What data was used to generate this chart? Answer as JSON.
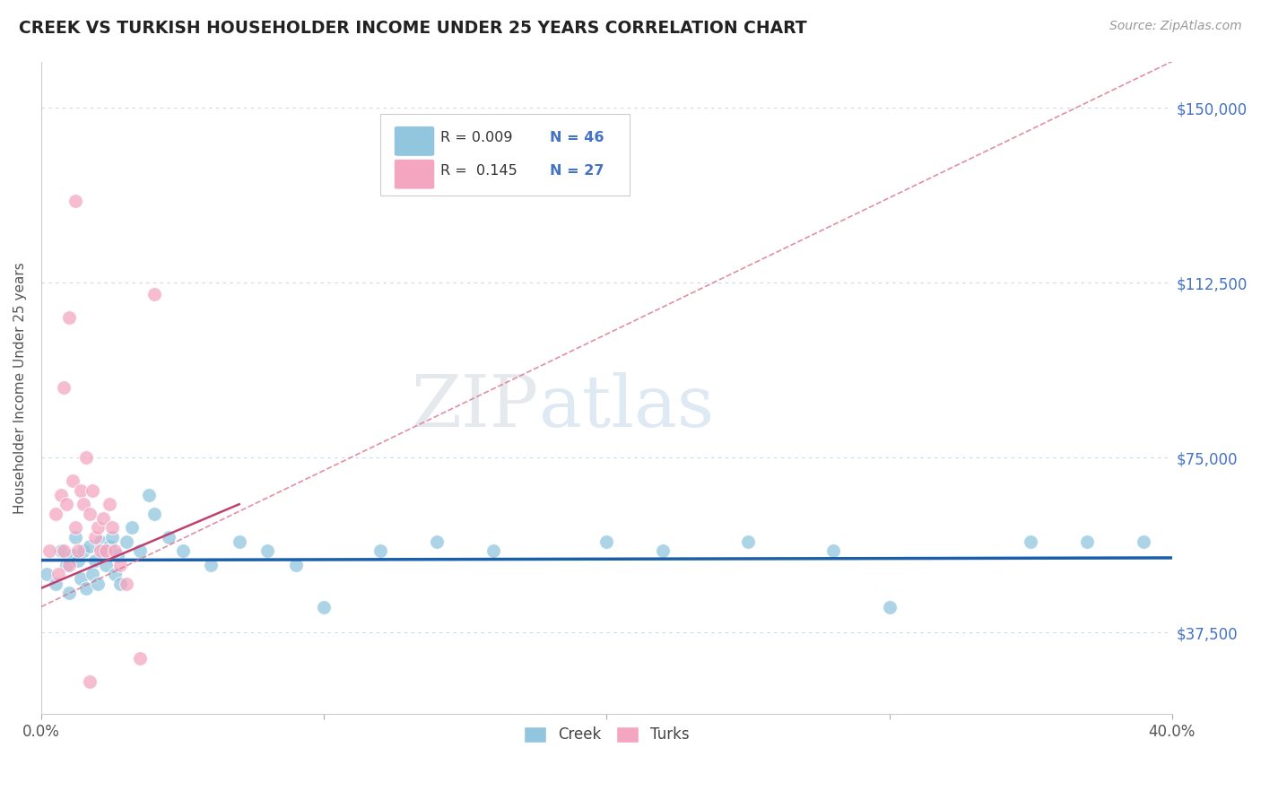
{
  "title": "CREEK VS TURKISH HOUSEHOLDER INCOME UNDER 25 YEARS CORRELATION CHART",
  "source": "Source: ZipAtlas.com",
  "ylabel": "Householder Income Under 25 years",
  "xlim": [
    0.0,
    0.4
  ],
  "ylim": [
    20000,
    160000
  ],
  "yticks": [
    37500,
    75000,
    112500,
    150000
  ],
  "ytick_labels": [
    "$37,500",
    "$75,000",
    "$112,500",
    "$150,000"
  ],
  "xticks": [
    0.0,
    0.1,
    0.2,
    0.3,
    0.4
  ],
  "creek_color": "#92c5de",
  "turks_color": "#f4a6c0",
  "creek_line_color": "#1a5fa8",
  "turks_line_color": "#d9748a",
  "legend_text_color": "#4472c4",
  "grid_color": "#c8d8e8",
  "creek_scatter_x": [
    0.002,
    0.005,
    0.007,
    0.009,
    0.01,
    0.011,
    0.012,
    0.013,
    0.014,
    0.015,
    0.016,
    0.017,
    0.018,
    0.019,
    0.02,
    0.021,
    0.022,
    0.023,
    0.024,
    0.025,
    0.026,
    0.027,
    0.028,
    0.03,
    0.032,
    0.035,
    0.038,
    0.04,
    0.045,
    0.05,
    0.06,
    0.07,
    0.08,
    0.09,
    0.1,
    0.12,
    0.14,
    0.16,
    0.2,
    0.22,
    0.25,
    0.28,
    0.3,
    0.35,
    0.37,
    0.39
  ],
  "creek_scatter_y": [
    50000,
    48000,
    55000,
    52000,
    46000,
    54000,
    58000,
    53000,
    49000,
    55000,
    47000,
    56000,
    50000,
    53000,
    48000,
    57000,
    55000,
    52000,
    56000,
    58000,
    50000,
    54000,
    48000,
    57000,
    60000,
    55000,
    67000,
    63000,
    58000,
    55000,
    52000,
    57000,
    55000,
    52000,
    43000,
    55000,
    57000,
    55000,
    57000,
    55000,
    57000,
    55000,
    43000,
    57000,
    57000,
    57000
  ],
  "turks_scatter_x": [
    0.003,
    0.005,
    0.006,
    0.007,
    0.008,
    0.009,
    0.01,
    0.011,
    0.012,
    0.013,
    0.014,
    0.015,
    0.016,
    0.017,
    0.018,
    0.019,
    0.02,
    0.021,
    0.022,
    0.023,
    0.024,
    0.025,
    0.026,
    0.028,
    0.03,
    0.035,
    0.04
  ],
  "turks_scatter_y": [
    55000,
    63000,
    50000,
    67000,
    55000,
    65000,
    52000,
    70000,
    60000,
    55000,
    68000,
    65000,
    75000,
    63000,
    68000,
    58000,
    60000,
    55000,
    62000,
    55000,
    65000,
    60000,
    55000,
    52000,
    48000,
    32000,
    110000
  ],
  "turks_outlier_x": [
    0.012
  ],
  "turks_outlier_y": [
    130000
  ],
  "turks_outlier2_x": [
    0.01
  ],
  "turks_outlier2_y": [
    105000
  ],
  "turks_outlier3_x": [
    0.008
  ],
  "turks_outlier3_y": [
    90000
  ],
  "turks_bottom_x": [
    0.017
  ],
  "turks_bottom_y": [
    27000
  ],
  "creek_line_x": [
    0.0,
    0.4
  ],
  "creek_line_y": [
    53000,
    53500
  ],
  "turks_line_x": [
    0.0,
    0.4
  ],
  "turks_line_y": [
    43000,
    160000
  ]
}
